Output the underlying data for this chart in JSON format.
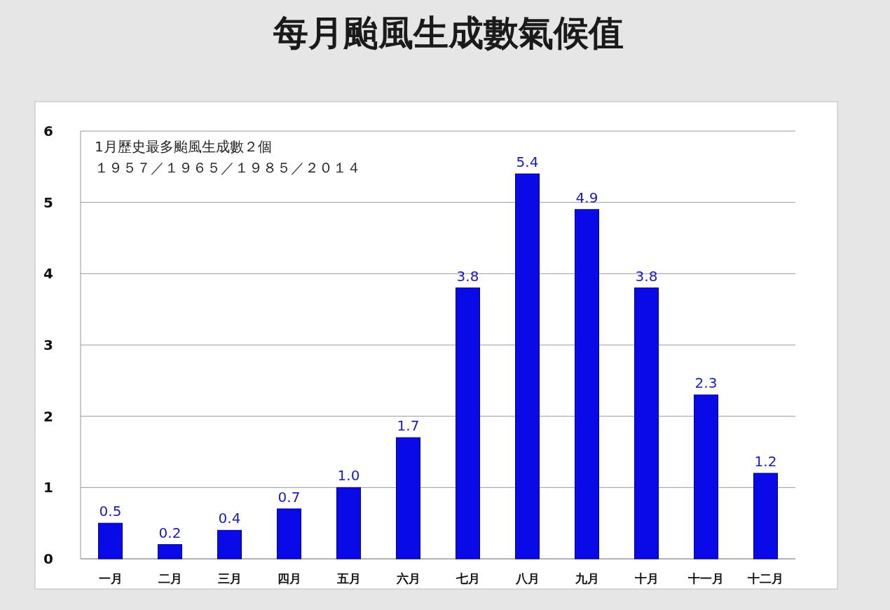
{
  "chart_data": {
    "type": "bar",
    "title": "每月颱風生成數氣候值",
    "categories": [
      "一月",
      "二月",
      "三月",
      "四月",
      "五月",
      "六月",
      "七月",
      "八月",
      "九月",
      "十月",
      "十一月",
      "十二月"
    ],
    "values": [
      0.5,
      0.2,
      0.4,
      0.7,
      1.0,
      1.7,
      3.8,
      5.4,
      4.9,
      3.8,
      2.3,
      1.2
    ],
    "value_labels": [
      "0.5",
      "0.2",
      "0.4",
      "0.7",
      "1.0",
      "1.7",
      "3.8",
      "5.4",
      "4.9",
      "3.8",
      "2.3",
      "1.2"
    ],
    "color": "#0a0ae8",
    "ylim": [
      0,
      6
    ],
    "yticks": [
      0,
      1,
      2,
      3,
      4,
      5,
      6
    ],
    "grid": "y",
    "annotations": [
      "1月歷史最多颱風生成數２個",
      "１９５７／１９６５／１９８５／２０１４"
    ]
  }
}
